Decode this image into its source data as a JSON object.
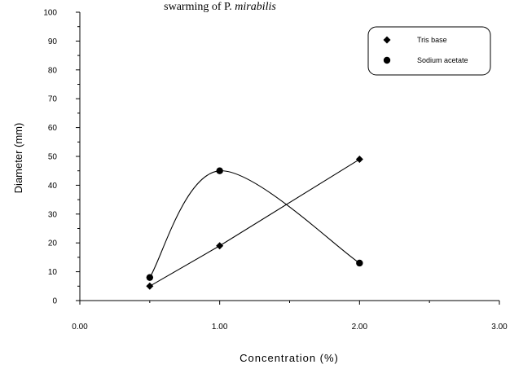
{
  "chart_data": {
    "type": "line",
    "title_fragment": {
      "prefix": "swarming of P. ",
      "italic": "mirabilis"
    },
    "xlabel": "Concentration (%)",
    "ylabel": "Diameter (mm)",
    "xlim": [
      0,
      3
    ],
    "ylim": [
      0,
      100
    ],
    "x_ticks": [
      0,
      1,
      2,
      3
    ],
    "x_tick_labels": [
      "0.00",
      "1.00",
      "2.00",
      "3.00"
    ],
    "y_ticks": [
      0,
      10,
      20,
      30,
      40,
      50,
      60,
      70,
      80,
      90,
      100
    ],
    "y_tick_labels": [
      "0",
      "10",
      "20",
      "30",
      "40",
      "50",
      "60",
      "70",
      "80",
      "90",
      "100"
    ],
    "grid": false,
    "legend_position": "top-right",
    "series": [
      {
        "name": "Tris base",
        "marker": "diamond",
        "curve": "straight",
        "x": [
          0.5,
          1.0,
          2.0
        ],
        "y": [
          5,
          19,
          49
        ]
      },
      {
        "name": "Sodium acetate",
        "marker": "circle",
        "curve": "smooth",
        "x": [
          0.5,
          1.0,
          2.0
        ],
        "y": [
          8,
          45,
          13
        ]
      }
    ]
  }
}
